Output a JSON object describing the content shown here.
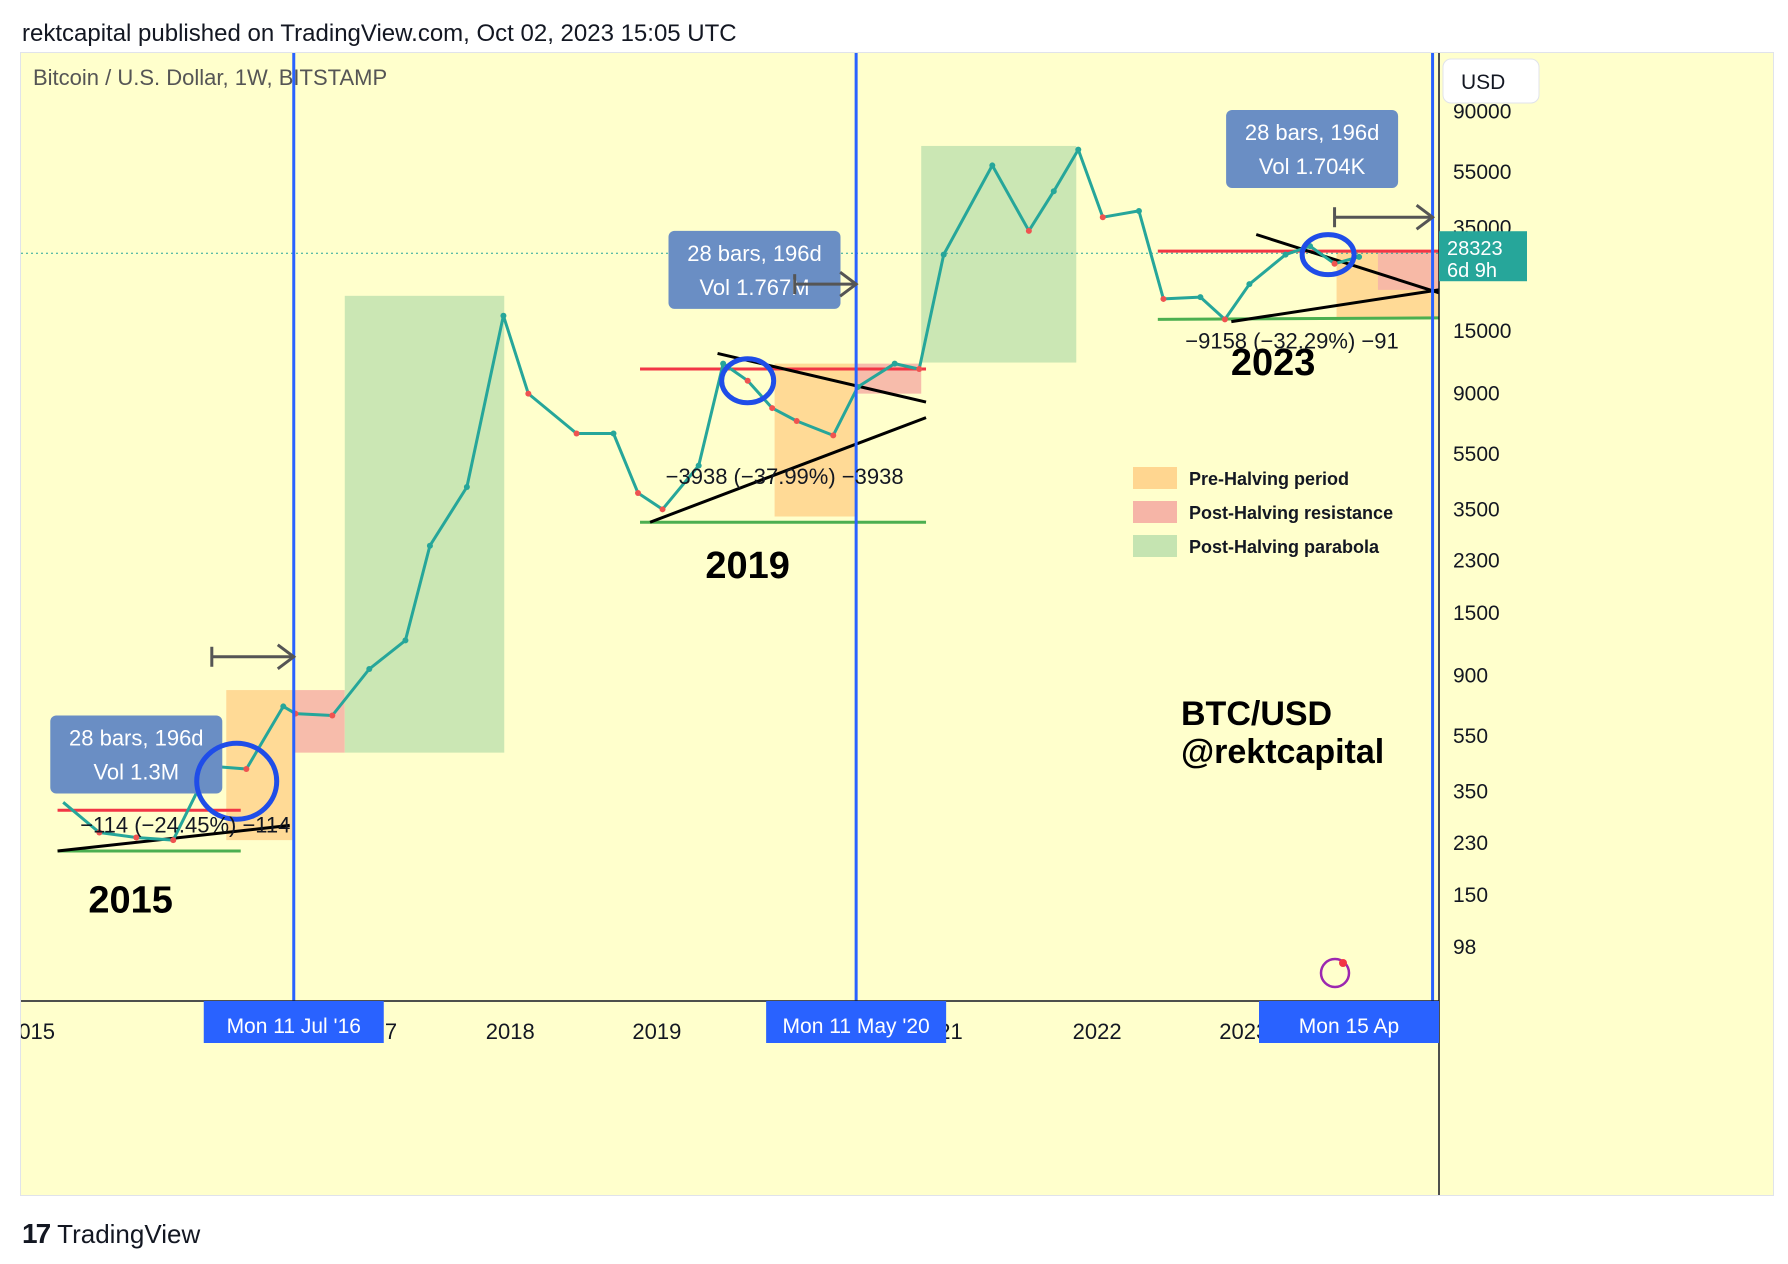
{
  "header": {
    "published": "rektcapital published on TradingView.com, Oct 02, 2023 15:05 UTC"
  },
  "footer": {
    "brand": "TradingView",
    "logo_icon": "tradingview-logo-icon"
  },
  "colors": {
    "background": "#ffffcc",
    "pre_halving": "#ffd690",
    "post_halving_resistance": "#f6b5a7",
    "post_halving_parabola": "#c5e4b1",
    "halving_line": "#2962ff",
    "resistance_line": "#f23645",
    "support_line": "#4caf50",
    "badge_blue": "#6a8ec4",
    "current_price": "#26a69a",
    "candle_up": "#26a69a",
    "candle_down": "#ef5350"
  },
  "chart_data": {
    "type": "line",
    "title": "Bitcoin / U.S. Dollar, 1W, BITSTAMP",
    "currency_button": "USD",
    "y_scale": "log",
    "ylim": [
      75,
      95000
    ],
    "y_ticks": [
      98,
      150,
      230,
      350,
      550,
      900,
      1500,
      2300,
      3500,
      5500,
      9000,
      15000,
      35000,
      55000,
      90000
    ],
    "x_ticks": [
      "015",
      "2",
      "7",
      "2018",
      "2019",
      "21",
      "2022",
      "2023"
    ],
    "current_price": {
      "value": "28323",
      "countdown": "6d 9h",
      "y": 28323
    },
    "series": [
      {
        "x": [
          "2014-12",
          "2015-03",
          "2015-06",
          "2015-09",
          "2015-12",
          "2016-03",
          "2016-06",
          "2016-07",
          "2016-10",
          "2017-01",
          "2017-04",
          "2017-06",
          "2017-09",
          "2017-12",
          "2018-02",
          "2018-06",
          "2018-09",
          "2018-11",
          "2019-01",
          "2019-04",
          "2019-06",
          "2019-08",
          "2019-10",
          "2019-12",
          "2020-03",
          "2020-05",
          "2020-08",
          "2020-10",
          "2020-12",
          "2021-04",
          "2021-07",
          "2021-09",
          "2021-11",
          "2022-01",
          "2022-04",
          "2022-06",
          "2022-09",
          "2022-11",
          "2023-01",
          "2023-04",
          "2023-06",
          "2023-08",
          "2023-10"
        ],
        "y": [
          320,
          250,
          240,
          235,
          430,
          420,
          700,
          660,
          650,
          950,
          1200,
          2600,
          4200,
          17000,
          9000,
          6500,
          6500,
          4000,
          3500,
          5000,
          11500,
          10000,
          8000,
          7200,
          6400,
          9500,
          11500,
          11000,
          28000,
          58000,
          34000,
          47000,
          66000,
          38000,
          40000,
          19500,
          19800,
          16500,
          22000,
          28000,
          30000,
          26000,
          27500
        ]
      }
    ],
    "halvings": [
      {
        "label": "Mon 11 Jul '16",
        "x": "2016-07-11"
      },
      {
        "label": "Mon 11 May '20",
        "x": "2020-05-11"
      },
      {
        "label": "Mon 15 Ap",
        "x": "2024-04-15"
      }
    ],
    "measurements": [
      {
        "bars": "28 bars, 196d",
        "vol": "Vol 1.3M"
      },
      {
        "bars": "28 bars, 196d",
        "vol": "Vol 1.767M"
      },
      {
        "bars": "28 bars, 196d",
        "vol": "Vol 1.704K"
      }
    ],
    "annotations": [
      {
        "text": "−114 (−24.45%) −114"
      },
      {
        "text": "−3938 (−37.99%) −3938"
      },
      {
        "text": "−9158 (−32.29%) −91"
      }
    ],
    "year_labels": [
      "2015",
      "2019",
      "2023"
    ],
    "legend": {
      "placement": "right",
      "entries": [
        "Pre-Halving period",
        "Post-Halving resistance",
        "Post-Halving parabola"
      ]
    },
    "watermark": {
      "line1": "BTC/USD",
      "line2": "@rektcapital"
    },
    "grid": false
  }
}
